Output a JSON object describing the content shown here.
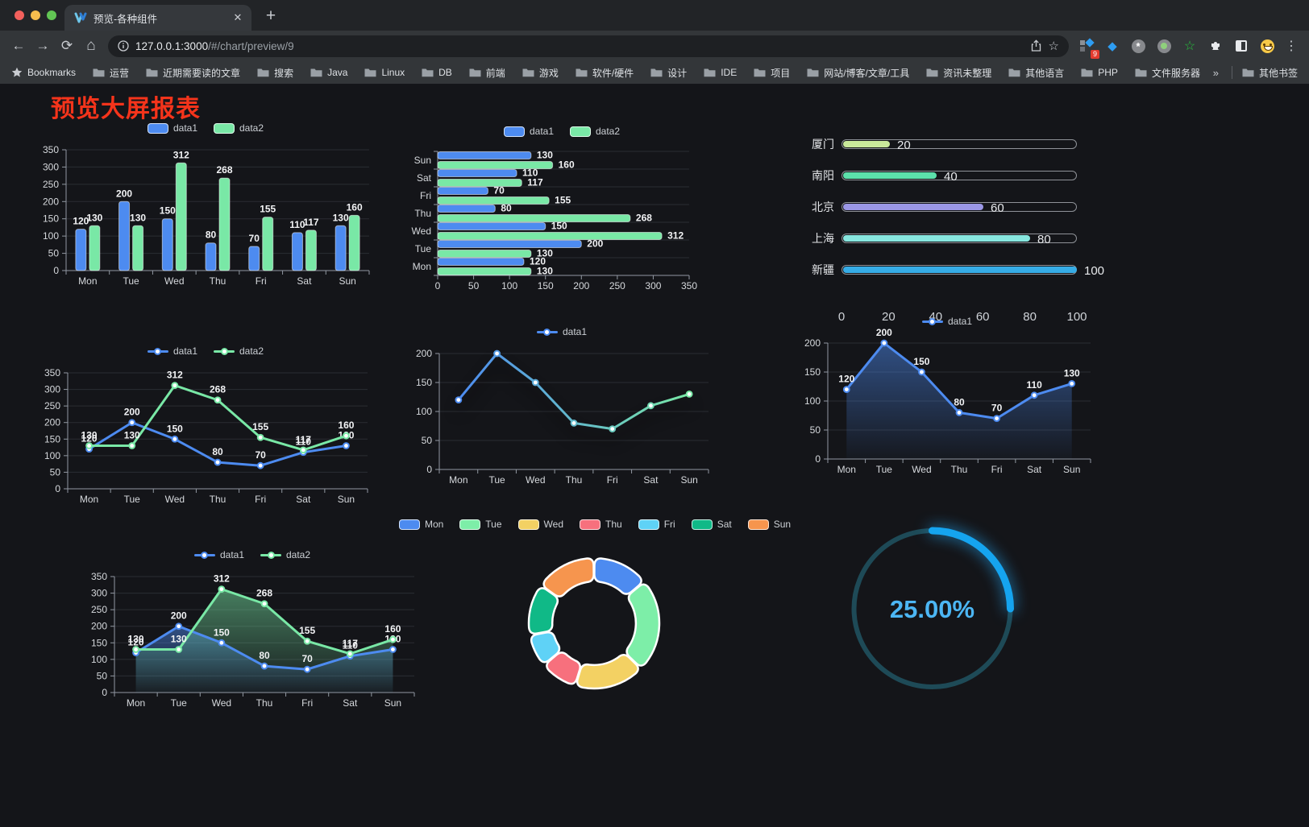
{
  "browser": {
    "tab": {
      "title": "预览-各种组件"
    },
    "new_tab_label": "+",
    "url": {
      "host": "127.0.0.1:3000",
      "path": "/#/chart/preview/9"
    },
    "bookmarks_label": "Bookmarks",
    "bookmarks": [
      "运营",
      "近期需要读的文章",
      "搜索",
      "Java",
      "Linux",
      "DB",
      "前端",
      "游戏",
      "软件/硬件",
      "设计",
      "IDE",
      "项目",
      "网站/博客/文章/工具",
      "资讯未整理",
      "其他语言",
      "PHP",
      "文件服务器"
    ],
    "bookmarks_overflow": "»",
    "other_bookmarks": "其他书签",
    "extension_badge": "9",
    "menu_glyph": "⋮"
  },
  "page": {
    "title": "预览大屏报表",
    "title_color": "#f5341b"
  },
  "chart_data": [
    {
      "id": "grouped-bar-vertical",
      "type": "bar",
      "orientation": "vertical",
      "categories": [
        "Mon",
        "Tue",
        "Wed",
        "Thu",
        "Fri",
        "Sat",
        "Sun"
      ],
      "series": [
        {
          "name": "data1",
          "color": "#4d8bf0",
          "values": [
            120,
            200,
            150,
            80,
            70,
            110,
            130
          ]
        },
        {
          "name": "data2",
          "color": "#79e8a6",
          "values": [
            130,
            130,
            312,
            268,
            155,
            117,
            160
          ]
        }
      ],
      "ylim": [
        0,
        350
      ],
      "ytick_step": 50,
      "value_labels": true,
      "legend_position": "top",
      "grid": true
    },
    {
      "id": "grouped-bar-horizontal",
      "type": "bar",
      "orientation": "horizontal",
      "categories": [
        "Mon",
        "Tue",
        "Wed",
        "Thu",
        "Fri",
        "Sat",
        "Sun"
      ],
      "series": [
        {
          "name": "data1",
          "color": "#4d8bf0",
          "values": [
            120,
            200,
            150,
            80,
            70,
            110,
            130
          ]
        },
        {
          "name": "data2",
          "color": "#79e8a6",
          "values": [
            130,
            130,
            312,
            268,
            155,
            117,
            160
          ]
        }
      ],
      "xlim": [
        0,
        350
      ],
      "xtick_step": 50,
      "value_labels": true,
      "legend_position": "top",
      "grid": true
    },
    {
      "id": "city-progress",
      "type": "progress",
      "max": 100,
      "items": [
        {
          "label": "厦门",
          "value": 20,
          "color": "#c9e89a"
        },
        {
          "label": "南阳",
          "value": 40,
          "color": "#5ce0ab"
        },
        {
          "label": "北京",
          "value": 60,
          "color": "#9b97e6"
        },
        {
          "label": "上海",
          "value": 80,
          "color": "#87e6df"
        },
        {
          "label": "新疆",
          "value": 100,
          "color": "#36ace6"
        }
      ],
      "xticks": [
        0,
        20,
        40,
        60,
        80,
        100
      ]
    },
    {
      "id": "dual-line",
      "type": "line",
      "categories": [
        "Mon",
        "Tue",
        "Wed",
        "Thu",
        "Fri",
        "Sat",
        "Sun"
      ],
      "series": [
        {
          "name": "data1",
          "color": "#4d8bf0",
          "values": [
            120,
            200,
            150,
            80,
            70,
            110,
            130
          ]
        },
        {
          "name": "data2",
          "color": "#79e8a6",
          "values": [
            130,
            130,
            312,
            268,
            155,
            117,
            160
          ]
        }
      ],
      "ylim": [
        0,
        350
      ],
      "ytick_step": 50,
      "value_labels": true,
      "legend_position": "top",
      "grid": true
    },
    {
      "id": "gradient-line",
      "type": "line",
      "categories": [
        "Mon",
        "Tue",
        "Wed",
        "Thu",
        "Fri",
        "Sat",
        "Sun"
      ],
      "series": [
        {
          "name": "data1",
          "color": "#4d8bf0",
          "color_gradient": [
            "#4d8bf0",
            "#79e8a6"
          ],
          "values": [
            120,
            200,
            150,
            80,
            70,
            110,
            130
          ],
          "shadow": true
        }
      ],
      "ylim": [
        0,
        200
      ],
      "ytick_step": 50,
      "value_labels": false,
      "legend_position": "top",
      "grid": true
    },
    {
      "id": "area-line",
      "type": "line",
      "categories": [
        "Mon",
        "Tue",
        "Wed",
        "Thu",
        "Fri",
        "Sat",
        "Sun"
      ],
      "series": [
        {
          "name": "data1",
          "color": "#4d8bf0",
          "values": [
            120,
            200,
            150,
            80,
            70,
            110,
            130
          ],
          "area": true
        }
      ],
      "ylim": [
        0,
        200
      ],
      "ytick_step": 50,
      "value_labels": true,
      "legend_position": "top",
      "grid": true
    },
    {
      "id": "dual-area-line",
      "type": "line",
      "categories": [
        "Mon",
        "Tue",
        "Wed",
        "Thu",
        "Fri",
        "Sat",
        "Sun"
      ],
      "series": [
        {
          "name": "data1",
          "color": "#4d8bf0",
          "values": [
            120,
            200,
            150,
            80,
            70,
            110,
            130
          ],
          "area": true
        },
        {
          "name": "data2",
          "color": "#79e8a6",
          "values": [
            130,
            130,
            312,
            268,
            155,
            117,
            160
          ],
          "area": true
        }
      ],
      "ylim": [
        0,
        350
      ],
      "ytick_step": 50,
      "value_labels": true,
      "legend_position": "top",
      "grid": true
    },
    {
      "id": "weekday-donut",
      "type": "pie",
      "categories": [
        "Mon",
        "Tue",
        "Wed",
        "Thu",
        "Fri",
        "Sat",
        "Sun"
      ],
      "values": [
        120,
        200,
        150,
        80,
        70,
        110,
        130
      ],
      "colors": [
        "#4d8bf0",
        "#7deea8",
        "#f3d163",
        "#f7707d",
        "#5fd2f6",
        "#10b987",
        "#f6954e"
      ],
      "inner_radius_ratio": 0.64,
      "start_angle_deg": -90,
      "border_color": "#ffffff",
      "legend_position": "top"
    },
    {
      "id": "percent-gauge",
      "type": "gauge",
      "value_text": "25.00%",
      "percent": 25,
      "track_color": "#1e4a57",
      "arc_color": "#15a4ef",
      "text_color": "#4cb6f4"
    }
  ]
}
